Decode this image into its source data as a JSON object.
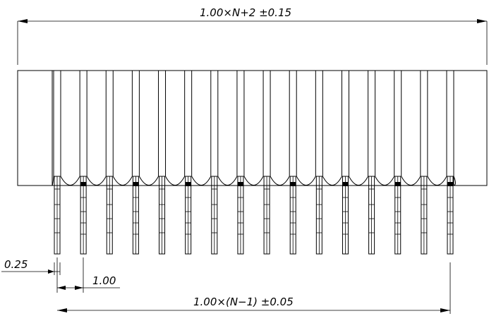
{
  "dimensions": {
    "overall_length": "1.00×N+2  ±0.15",
    "pitch_span": "1.00×(N−1)  ±0.05",
    "pitch": "1.00",
    "pin_width": "0.25"
  },
  "connector": {
    "pin_count": 16
  }
}
